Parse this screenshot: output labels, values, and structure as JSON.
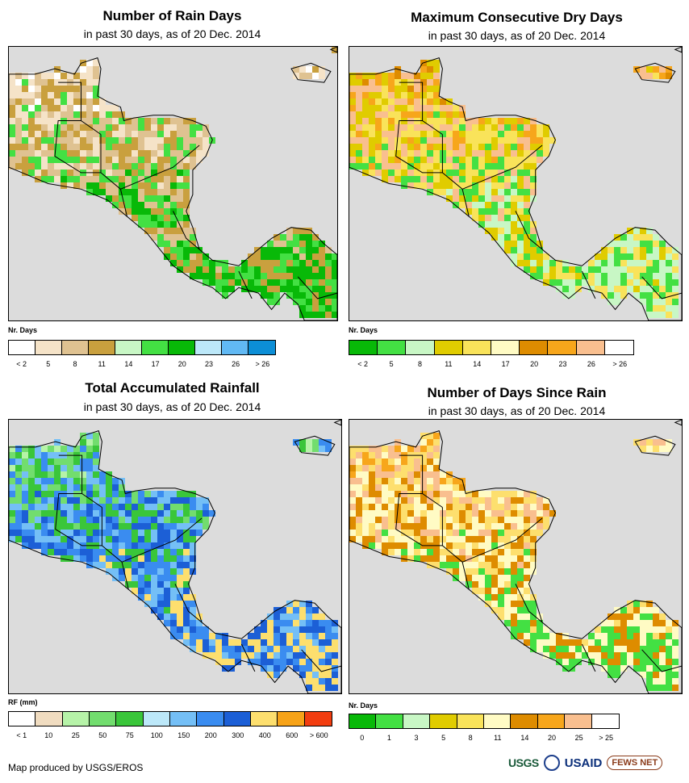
{
  "panels": [
    {
      "id": "rain-days",
      "title": "Number of Rain Days",
      "subtitle": "in past 30 days, as of 20 Dec. 2014",
      "legend_title": "Nr. Days",
      "legend_colors": [
        "#ffffff",
        "#f5e3c8",
        "#dfc291",
        "#c9a03e",
        "#c8f7c5",
        "#43e043",
        "#08b908",
        "#bce8f9",
        "#61b9f4",
        "#0c8ed6"
      ],
      "legend_ticks": [
        "< 2",
        "5",
        "8",
        "11",
        "14",
        "17",
        "20",
        "23",
        "26",
        "> 26"
      ],
      "map_palette": [
        "#ffffff",
        "#f5e3c8",
        "#dfc291",
        "#c9a03e",
        "#43e043",
        "#08b908"
      ]
    },
    {
      "id": "max-dry-days",
      "title": "Maximum Consecutive Dry Days",
      "subtitle": "in past 30 days, as of 20 Dec. 2014",
      "legend_title": "Nr. Days",
      "legend_colors": [
        "#08b908",
        "#43e043",
        "#c8f7c5",
        "#e0cc00",
        "#f9e35a",
        "#fffbc4",
        "#de8c00",
        "#f7a61b",
        "#f9bf8f",
        "#ffffff"
      ],
      "legend_ticks": [
        "< 2",
        "5",
        "8",
        "11",
        "14",
        "17",
        "20",
        "23",
        "26",
        "> 26"
      ],
      "map_palette": [
        "#de8c00",
        "#f7a61b",
        "#f9bf8f",
        "#e0cc00",
        "#f9e35a",
        "#43e043",
        "#c8f7c5"
      ]
    },
    {
      "id": "total-rainfall",
      "title": "Total Accumulated Rainfall",
      "subtitle": "in past 30 days, as of 20 Dec. 2014",
      "legend_title": "RF (mm)",
      "legend_colors": [
        "#ffffff",
        "#f0dcc0",
        "#b6f3a8",
        "#72dd6e",
        "#3ac63a",
        "#bce8f9",
        "#74bff6",
        "#3a8cf0",
        "#1c5fd6",
        "#fddf6e",
        "#f7a318",
        "#f23d10"
      ],
      "legend_ticks": [
        "< 1",
        "10",
        "25",
        "50",
        "75",
        "100",
        "150",
        "200",
        "300",
        "400",
        "600",
        "> 600"
      ],
      "map_palette": [
        "#b6f3a8",
        "#72dd6e",
        "#3ac63a",
        "#74bff6",
        "#3a8cf0",
        "#1c5fd6",
        "#fddf6e"
      ]
    },
    {
      "id": "days-since-rain",
      "title": "Number of Days Since Rain",
      "subtitle": "in past 30 days, as of 20 Dec. 2014",
      "legend_title": "Nr. Days",
      "legend_colors": [
        "#08b908",
        "#43e043",
        "#c8f7c5",
        "#e0cc00",
        "#f9e35a",
        "#fffbc4",
        "#de8c00",
        "#f7a61b",
        "#f9bf8f",
        "#ffffff"
      ],
      "legend_ticks": [
        "0",
        "1",
        "3",
        "5",
        "8",
        "11",
        "14",
        "20",
        "25",
        "> 25"
      ],
      "map_palette": [
        "#f7a61b",
        "#f9bf8f",
        "#fddf6e",
        "#fffbc4",
        "#de8c00",
        "#43e043"
      ]
    }
  ],
  "credit": "Map produced by USGS/EROS",
  "logos": {
    "usgs": "USGS",
    "usaid": "USAID",
    "fews": "FEWS NET"
  }
}
